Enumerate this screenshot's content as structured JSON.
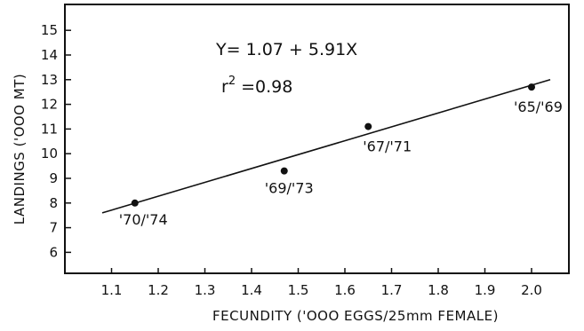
{
  "chart_data": {
    "type": "scatter",
    "xlabel": "FECUNDITY ('OOO EGGS/25mm FEMALE)",
    "ylabel": "LANDINGS ('OOO MT)",
    "xlim": [
      1.0,
      2.08
    ],
    "ylim": [
      5.15,
      16.05
    ],
    "x_ticks": [
      "1.1",
      "1.2",
      "1.3",
      "1.4",
      "1.5",
      "1.6",
      "1.7",
      "1.8",
      "1.9",
      "2.0"
    ],
    "y_ticks": [
      "6",
      "7",
      "8",
      "9",
      "10",
      "11",
      "12",
      "13",
      "14",
      "15"
    ],
    "points": [
      {
        "x": 1.15,
        "y": 8.0,
        "label": "'70/'74"
      },
      {
        "x": 1.47,
        "y": 9.3,
        "label": "'69/'73"
      },
      {
        "x": 1.65,
        "y": 11.1,
        "label": "'67/'71"
      },
      {
        "x": 2.0,
        "y": 12.7,
        "label": "'65/'69"
      }
    ],
    "fit_line": {
      "x": [
        1.08,
        2.04
      ],
      "y": [
        7.6,
        13.0
      ]
    },
    "equation": "Y= 1.07 + 5.91X",
    "r2_prefix": "r",
    "r2_exp": "2",
    "r2_value": " =0.98",
    "grid": false,
    "legend": "none"
  }
}
